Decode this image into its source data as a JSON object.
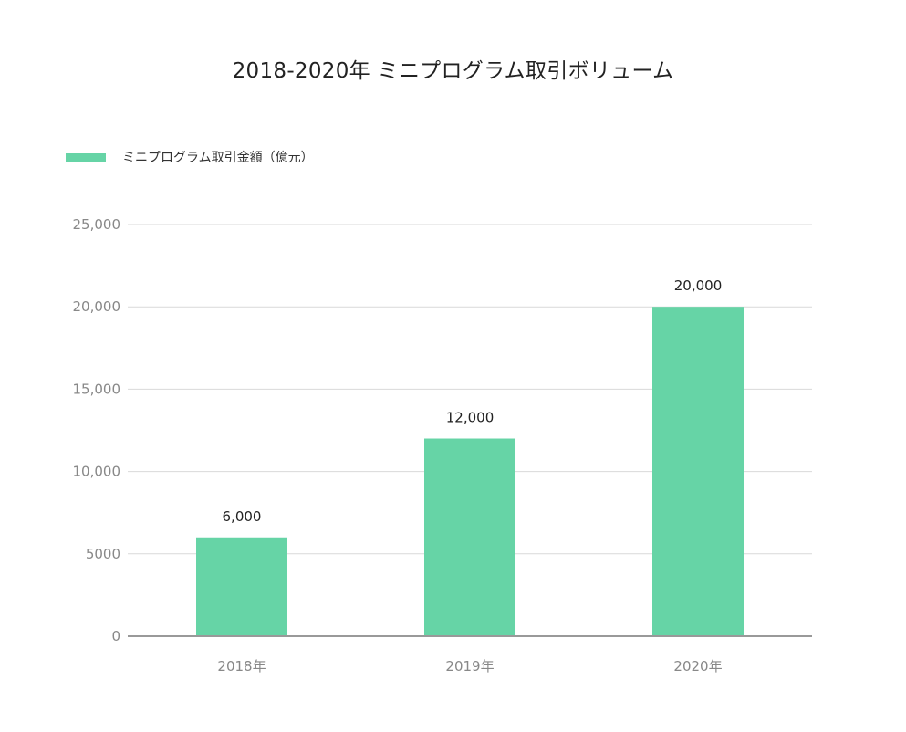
{
  "chart_data": {
    "type": "bar",
    "title": "2018-2020年 ミニプログラム取引ボリューム",
    "categories": [
      "2018年",
      "2019年",
      "2020年"
    ],
    "series": [
      {
        "name": "ミニプログラム取引金額（億元）",
        "values": [
          6000,
          12000,
          20000
        ],
        "value_labels": [
          "6,000",
          "12,000",
          "20,000"
        ],
        "color": "#66d4a6"
      }
    ],
    "ylim": [
      0,
      25000
    ],
    "y_ticks": [
      0,
      5000,
      10000,
      15000,
      20000,
      25000
    ],
    "y_tick_labels": [
      "0",
      "5000",
      "10,000",
      "15,000",
      "20,000",
      "25,000"
    ],
    "grid": true,
    "legend_position": "top-left",
    "gridline_color": "#d9d9d9",
    "axis_color": "#999999"
  }
}
